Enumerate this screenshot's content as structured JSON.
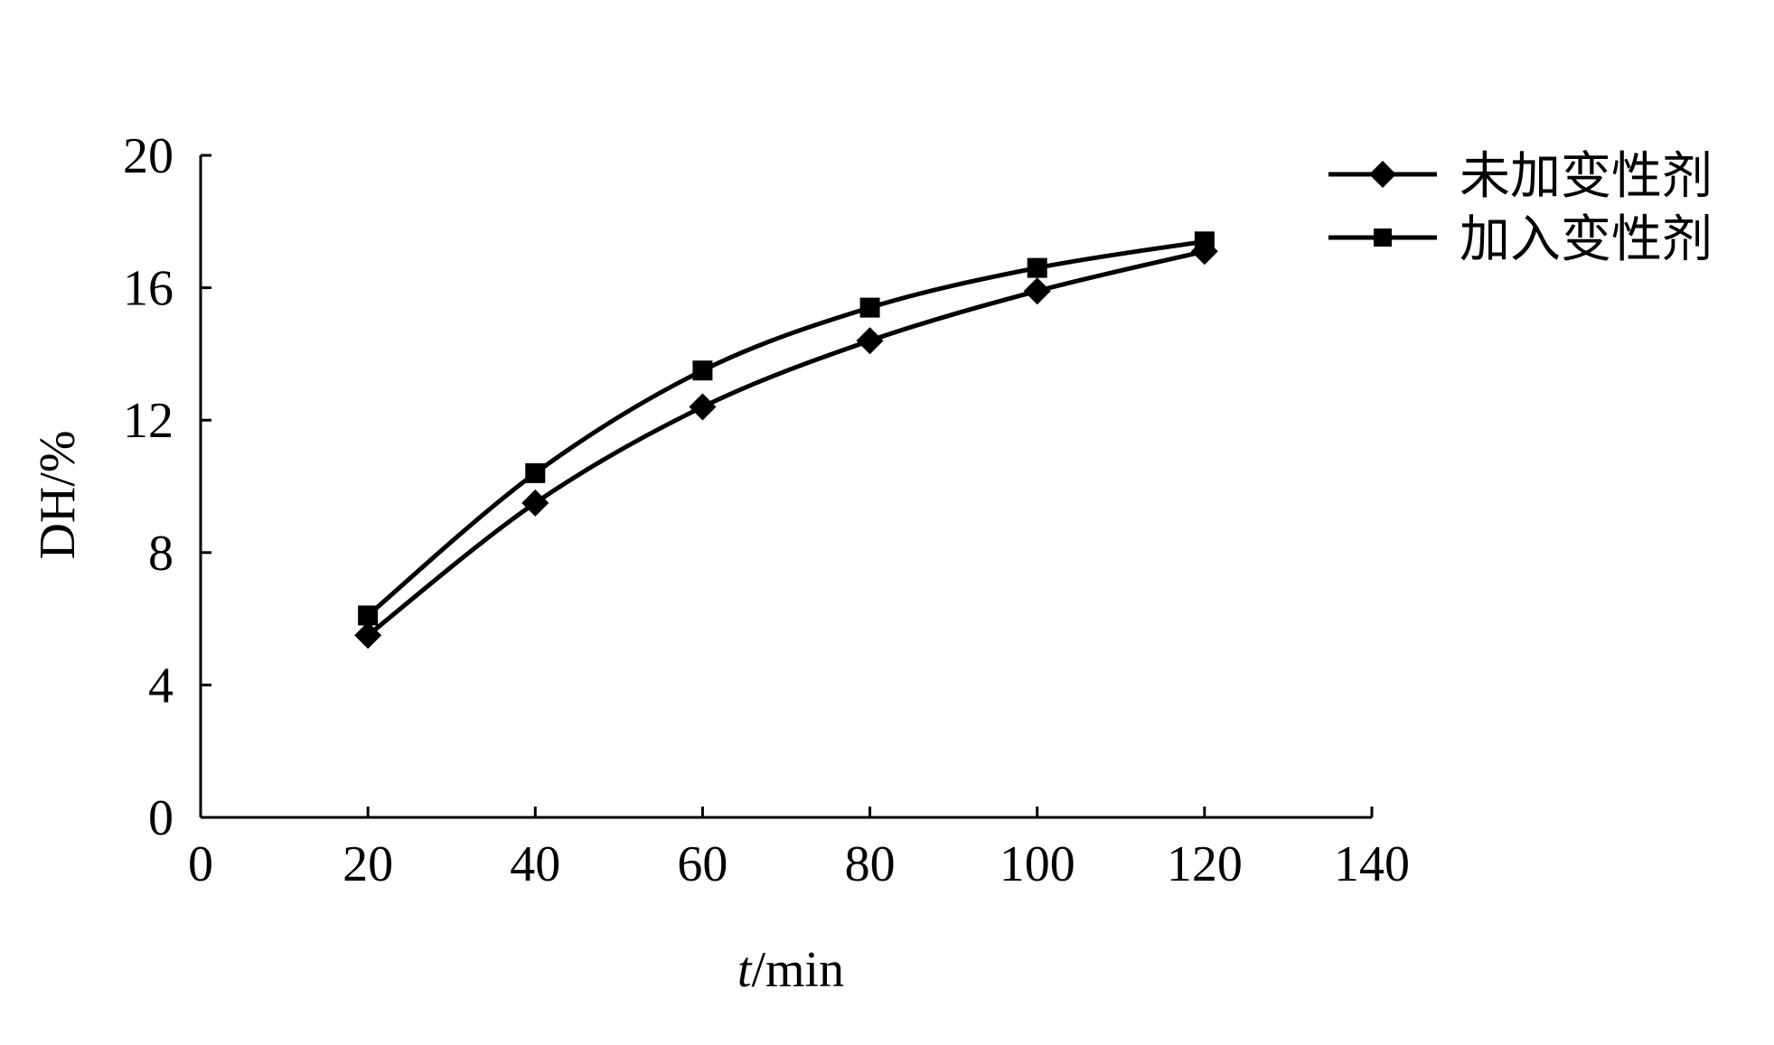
{
  "chart_data": {
    "type": "line",
    "title": "",
    "xlabel": {
      "italic": "t",
      "rest": "/min"
    },
    "ylabel": "DH/%",
    "xlim": [
      0,
      140
    ],
    "ylim": [
      0,
      20
    ],
    "x_ticks": [
      "0",
      "20",
      "40",
      "60",
      "80",
      "100",
      "120",
      "140"
    ],
    "y_ticks": [
      "0",
      "4",
      "8",
      "12",
      "16",
      "20"
    ],
    "grid": false,
    "legend_position": "top-right",
    "x": [
      20,
      40,
      60,
      80,
      100,
      120
    ],
    "series": [
      {
        "name": "未加变性剂",
        "marker": "diamond",
        "values": [
          5.5,
          9.5,
          12.4,
          14.4,
          15.9,
          17.1
        ]
      },
      {
        "name": "加入变性剂",
        "marker": "square",
        "values": [
          6.1,
          10.4,
          13.5,
          15.4,
          16.6,
          17.4
        ]
      }
    ]
  }
}
